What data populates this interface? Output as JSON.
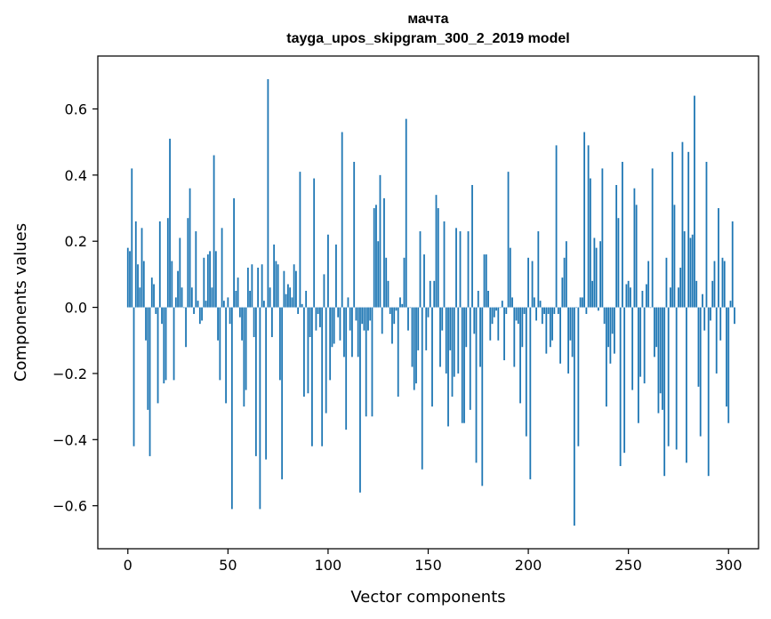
{
  "chart_data": {
    "type": "bar",
    "title": "мачта",
    "subtitle": "tayga_upos_skipgram_300_2_2019 model",
    "xlabel": "Vector components",
    "ylabel": "Components values",
    "xlim": [
      -15,
      315
    ],
    "ylim": [
      -0.73,
      0.76
    ],
    "xticks": [
      0,
      50,
      100,
      150,
      200,
      250,
      300
    ],
    "xtick_labels": [
      "0",
      "50",
      "100",
      "150",
      "200",
      "250",
      "300"
    ],
    "yticks": [
      -0.6,
      -0.4,
      -0.2,
      0.0,
      0.2,
      0.4,
      0.6
    ],
    "ytick_labels": [
      "−0.6",
      "−0.4",
      "−0.2",
      "0.0",
      "0.2",
      "0.4",
      "0.6"
    ],
    "grid": false,
    "color": "#1f77b4",
    "series": [
      {
        "values": [
          0.18,
          0.17,
          0.42,
          -0.42,
          0.26,
          0.13,
          0.06,
          0.24,
          0.14,
          -0.1,
          -0.31,
          -0.45,
          0.09,
          0.07,
          -0.02,
          -0.29,
          0.26,
          -0.05,
          -0.23,
          -0.22,
          0.27,
          0.51,
          0.14,
          -0.22,
          0.03,
          0.11,
          0.21,
          0.06,
          0.0,
          -0.12,
          0.27,
          0.36,
          0.06,
          -0.02,
          0.23,
          0.02,
          -0.05,
          -0.04,
          0.15,
          0.02,
          0.16,
          0.17,
          0.06,
          0.46,
          0.17,
          -0.1,
          -0.22,
          0.24,
          0.02,
          -0.29,
          0.03,
          -0.05,
          -0.61,
          0.33,
          0.05,
          0.09,
          -0.03,
          -0.1,
          -0.3,
          -0.25,
          0.12,
          0.05,
          0.13,
          -0.09,
          -0.45,
          0.12,
          -0.61,
          0.13,
          0.02,
          -0.46,
          0.69,
          0.06,
          -0.09,
          0.19,
          0.14,
          0.13,
          -0.22,
          -0.52,
          0.11,
          0.04,
          0.07,
          0.06,
          0.03,
          0.13,
          0.11,
          -0.02,
          0.41,
          0.01,
          -0.27,
          0.05,
          -0.26,
          -0.09,
          -0.42,
          0.39,
          -0.07,
          -0.02,
          -0.06,
          -0.42,
          0.1,
          -0.32,
          0.22,
          -0.22,
          -0.12,
          -0.11,
          0.19,
          -0.03,
          -0.1,
          0.53,
          -0.15,
          -0.37,
          0.03,
          -0.07,
          -0.15,
          0.44,
          -0.04,
          -0.15,
          -0.56,
          -0.05,
          -0.07,
          -0.33,
          -0.07,
          -0.04,
          -0.33,
          0.3,
          0.31,
          0.2,
          0.4,
          -0.08,
          0.33,
          0.15,
          0.08,
          -0.02,
          -0.11,
          -0.05,
          -0.01,
          -0.27,
          0.03,
          0.01,
          0.15,
          0.57,
          -0.07,
          0.0,
          -0.18,
          -0.25,
          -0.23,
          -0.13,
          0.23,
          -0.49,
          0.16,
          -0.13,
          -0.03,
          0.08,
          -0.3,
          0.08,
          0.34,
          0.3,
          -0.18,
          -0.07,
          0.26,
          -0.2,
          -0.36,
          -0.13,
          -0.27,
          -0.21,
          0.24,
          -0.2,
          0.23,
          -0.35,
          -0.35,
          -0.12,
          0.23,
          -0.31,
          0.37,
          -0.08,
          -0.47,
          0.05,
          -0.18,
          -0.54,
          0.16,
          0.16,
          0.05,
          -0.1,
          -0.05,
          -0.03,
          -0.01,
          -0.1,
          0.0,
          0.02,
          -0.16,
          -0.02,
          0.41,
          0.18,
          0.03,
          -0.18,
          -0.04,
          -0.05,
          -0.29,
          -0.12,
          -0.02,
          -0.39,
          0.15,
          -0.52,
          0.14,
          0.03,
          -0.04,
          0.23,
          0.02,
          -0.05,
          -0.02,
          -0.14,
          -0.02,
          -0.12,
          -0.1,
          -0.02,
          0.49,
          -0.02,
          -0.17,
          0.09,
          0.15,
          0.2,
          -0.2,
          -0.1,
          -0.15,
          -0.66,
          0.0,
          -0.42,
          0.03,
          0.03,
          0.53,
          -0.02,
          0.49,
          0.39,
          0.08,
          0.21,
          0.18,
          -0.01,
          0.2,
          0.42,
          -0.05,
          -0.3,
          -0.12,
          -0.17,
          -0.08,
          -0.14,
          0.37,
          0.27,
          -0.48,
          0.44,
          -0.44,
          0.07,
          0.08,
          0.06,
          -0.25,
          0.36,
          0.31,
          -0.35,
          -0.21,
          0.05,
          -0.23,
          0.07,
          0.14,
          0.0,
          0.42,
          -0.15,
          -0.12,
          -0.32,
          -0.26,
          -0.31,
          -0.51,
          0.15,
          -0.42,
          0.06,
          0.47,
          0.31,
          -0.43,
          0.06,
          0.12,
          0.5,
          0.23,
          -0.47,
          0.47,
          0.21,
          0.22,
          0.64,
          0.08,
          -0.24,
          -0.39,
          0.04,
          -0.07,
          0.44,
          -0.51,
          -0.04,
          0.08,
          0.14,
          -0.2,
          0.3,
          -0.1,
          0.15,
          0.14,
          -0.3,
          -0.35,
          0.02,
          0.26,
          -0.05
        ]
      }
    ]
  }
}
